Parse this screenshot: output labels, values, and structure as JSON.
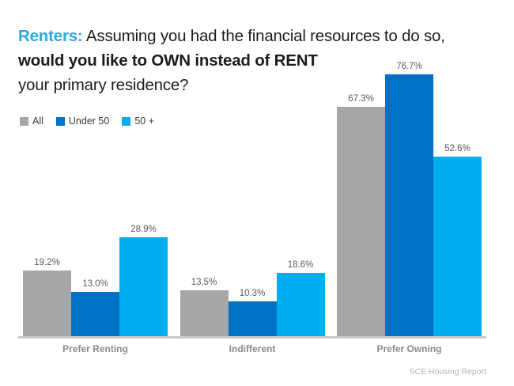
{
  "title": {
    "line1_highlight": "Renters:",
    "line1_rest": " Assuming you had the financial resources to do so,",
    "line2": "would you like to OWN instead of RENT",
    "line3": "your primary residence?"
  },
  "accent_colors": {
    "title_highlight": "#29abe2",
    "axis_line": "#c9c9c9",
    "value_label": "#595959",
    "category_label": "#8a8a8a"
  },
  "chart_data": {
    "type": "bar",
    "title": "Renters: Assuming you had the financial resources to do so, would you like to OWN instead of RENT your primary residence?",
    "categories": [
      "Prefer Renting",
      "Indifferent",
      "Prefer Owning"
    ],
    "series": [
      {
        "name": "All",
        "color": "#a7a7a7",
        "values": [
          19.2,
          13.5,
          67.3
        ]
      },
      {
        "name": "Under 50",
        "color": "#0072c6",
        "values": [
          13.0,
          10.3,
          76.7
        ]
      },
      {
        "name": "50 +",
        "color": "#00aeef",
        "values": [
          28.9,
          18.6,
          52.6
        ]
      }
    ],
    "value_label_format": "{value}%",
    "ylim": [
      0,
      80
    ],
    "grid": false,
    "legend_position": "top-left",
    "xlabel": "",
    "ylabel": ""
  },
  "footer": "SCE Housing Report"
}
